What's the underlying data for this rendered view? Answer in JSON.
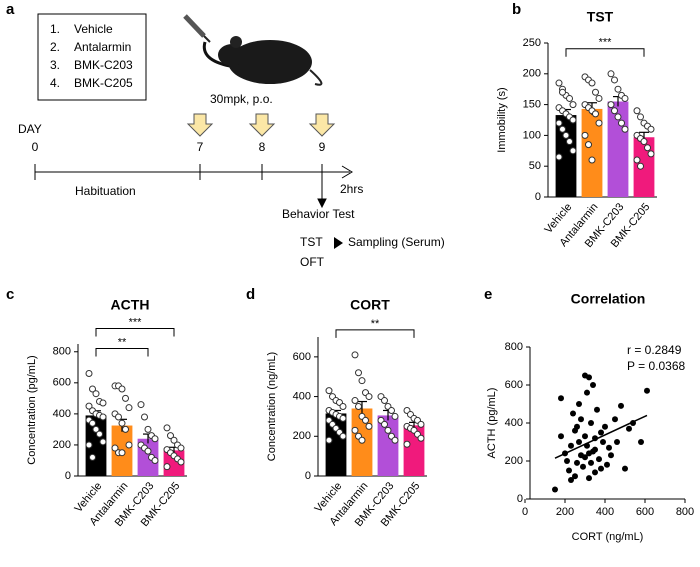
{
  "diagram": {
    "panel": "a",
    "treatments": [
      {
        "num": "1.",
        "name": "Vehicle"
      },
      {
        "num": "2.",
        "name": "Antalarmin"
      },
      {
        "num": "3.",
        "name": "BMK-C203"
      },
      {
        "num": "4.",
        "name": "BMK-C205"
      }
    ],
    "dose": "30mpk, p.o.",
    "day_label": "DAY",
    "days": [
      0,
      7,
      8,
      9
    ],
    "habituation": "Habituation",
    "duration": "2hrs",
    "test": "Behavior Test",
    "test_1": "TST",
    "sampling": "Sampling (Serum)",
    "test_2": "OFT"
  },
  "chart_data": [
    {
      "type": "bar",
      "panel": "b",
      "title": "TST",
      "y_label": "Immobility (s)",
      "categories": [
        "Vehicle",
        "Antalarmin",
        "BMK-C203",
        "BMK-C205"
      ],
      "values": [
        133,
        143,
        155,
        97
      ],
      "errors": [
        9,
        10,
        8,
        8
      ],
      "colors": [
        "#000000",
        "#ff8c1a",
        "#b24fd8",
        "#f01a7c"
      ],
      "points": [
        [
          185,
          175,
          165,
          160,
          150,
          145,
          140,
          135,
          130,
          125,
          120,
          110,
          100,
          90,
          75,
          65,
          170
        ],
        [
          195,
          190,
          185,
          170,
          160,
          150,
          145,
          140,
          135,
          120,
          100,
          85,
          60
        ],
        [
          200,
          190,
          175,
          165,
          160,
          150,
          140,
          130,
          120,
          110
        ],
        [
          140,
          130,
          120,
          115,
          110,
          100,
          95,
          90,
          80,
          70,
          60,
          50
        ]
      ],
      "significance": [
        {
          "from": "Vehicle",
          "to": "BMK-C205",
          "label": "***"
        }
      ],
      "ylim": [
        0,
        250
      ],
      "yticks": [
        0,
        50,
        100,
        150,
        200,
        250
      ]
    },
    {
      "type": "bar",
      "panel": "c",
      "title": "ACTH",
      "y_label": "Concentration (pg/mL)",
      "categories": [
        "Vehicle",
        "Antalarmin",
        "BMK-C203",
        "BMK-C205"
      ],
      "values": [
        390,
        325,
        240,
        165
      ],
      "errors": [
        30,
        40,
        30,
        20
      ],
      "colors": [
        "#000000",
        "#ff8c1a",
        "#b24fd8",
        "#f01a7c"
      ],
      "points": [
        [
          660,
          560,
          530,
          480,
          470,
          450,
          420,
          400,
          390,
          380,
          360,
          340,
          300,
          270,
          220,
          200,
          120
        ],
        [
          580,
          580,
          560,
          500,
          440,
          400,
          380,
          340,
          300,
          200,
          180,
          150,
          150
        ],
        [
          460,
          380,
          300,
          260,
          240,
          200,
          180,
          160,
          120,
          100
        ],
        [
          310,
          260,
          230,
          200,
          180,
          170,
          150,
          130,
          110,
          90,
          60
        ]
      ],
      "significance": [
        {
          "from": "Vehicle",
          "to": "BMK-C203",
          "label": "**"
        },
        {
          "from": "Vehicle",
          "to": "BMK-C205",
          "label": "***"
        }
      ],
      "ylim": [
        0,
        850
      ],
      "yticks": [
        0,
        200,
        400,
        600,
        800
      ]
    },
    {
      "type": "bar",
      "panel": "d",
      "title": "CORT",
      "y_label": "Concentration (ng/mL)",
      "categories": [
        "Vehicle",
        "Antalarmin",
        "BMK-C203",
        "BMK-C205"
      ],
      "values": [
        315,
        340,
        305,
        255
      ],
      "errors": [
        15,
        35,
        25,
        15
      ],
      "colors": [
        "#000000",
        "#ff8c1a",
        "#b24fd8",
        "#f01a7c"
      ],
      "points": [
        [
          430,
          400,
          380,
          370,
          350,
          330,
          320,
          310,
          300,
          290,
          280,
          260,
          240,
          220,
          200,
          180
        ],
        [
          610,
          520,
          480,
          420,
          400,
          380,
          350,
          300,
          280,
          250,
          230,
          200,
          180
        ],
        [
          400,
          380,
          350,
          330,
          300,
          280,
          260,
          230,
          200,
          180
        ],
        [
          330,
          310,
          290,
          280,
          260,
          250,
          240,
          230,
          210,
          190,
          160
        ]
      ],
      "significance": [
        {
          "from": "Vehicle",
          "to": "BMK-C205",
          "label": "**"
        }
      ],
      "ylim": [
        0,
        700
      ],
      "yticks": [
        0,
        200,
        400,
        600
      ]
    },
    {
      "type": "scatter",
      "panel": "e",
      "title": "Correlation",
      "x_label": "CORT (ng/mL)",
      "y_label": "ACTH (pg/mL)",
      "annotations": [
        "r = 0.2849",
        "P = 0.0368"
      ],
      "color": "#000000",
      "x": [
        150,
        180,
        200,
        210,
        220,
        230,
        240,
        250,
        260,
        260,
        270,
        280,
        280,
        290,
        300,
        300,
        310,
        310,
        320,
        320,
        330,
        330,
        340,
        340,
        350,
        350,
        360,
        370,
        380,
        380,
        390,
        400,
        410,
        420,
        430,
        450,
        460,
        480,
        500,
        520,
        540,
        580,
        610,
        180,
        230,
        270,
        300,
        320,
        350,
        250
      ],
      "values": [
        50,
        530,
        240,
        200,
        150,
        280,
        450,
        120,
        380,
        190,
        300,
        420,
        230,
        170,
        650,
        330,
        560,
        280,
        240,
        110,
        400,
        190,
        600,
        250,
        320,
        140,
        470,
        210,
        350,
        160,
        300,
        380,
        180,
        270,
        230,
        420,
        300,
        490,
        160,
        370,
        400,
        300,
        570,
        330,
        100,
        500,
        220,
        640,
        260,
        360
      ],
      "fit": {
        "x": [
          150,
          610
        ],
        "y": [
          215,
          440
        ]
      },
      "xlim": [
        0,
        800
      ],
      "xticks": [
        0,
        200,
        400,
        600,
        800
      ],
      "ylim": [
        0,
        800
      ],
      "yticks": [
        0,
        200,
        400,
        600,
        800
      ]
    }
  ]
}
